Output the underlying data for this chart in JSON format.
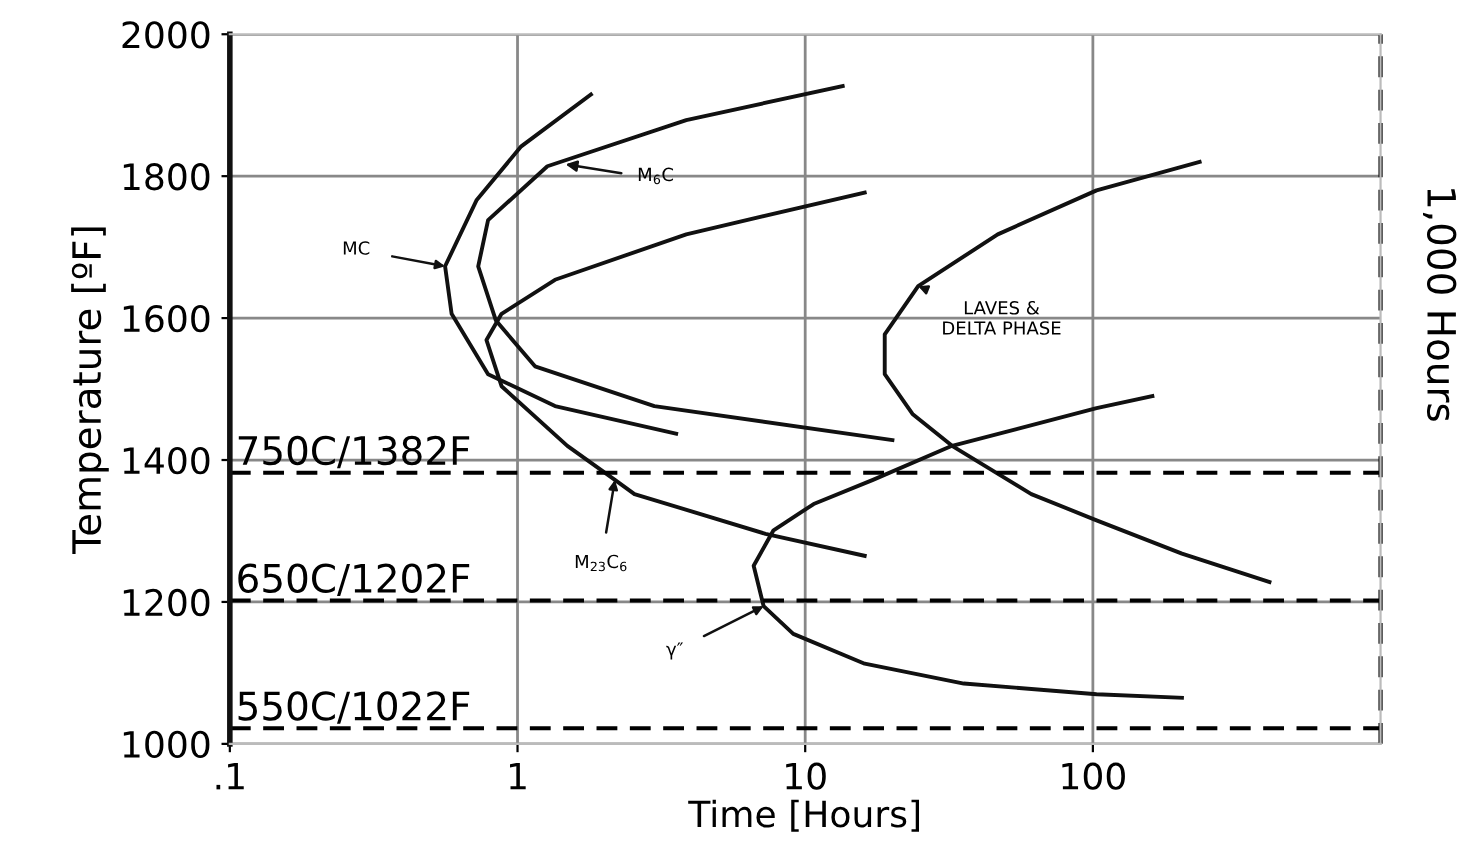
{
  "chart_data": {
    "type": "line",
    "xlabel": "Time [Hours]",
    "ylabel": "Temperature [ºF]",
    "log": "x",
    "xlim": [
      0.1,
      1000
    ],
    "ylim": [
      1000,
      2000
    ],
    "xticks": [
      {
        "value": 0.1,
        "label": ".1"
      },
      1,
      10,
      100
    ],
    "yticks": [
      1000,
      1200,
      1400,
      1600,
      1800,
      2000
    ],
    "grid": true,
    "marker": "none",
    "line_style": "solid",
    "series": [
      {
        "color": "#111111",
        "x": [
          1.8,
          1.03,
          0.72,
          0.56,
          0.59,
          0.79,
          1.35,
          3.56
        ],
        "values": [
          1915,
          1842,
          1766,
          1673,
          1606,
          1521,
          1476,
          1437
        ]
      },
      {
        "color": "#111111",
        "x": [
          13.5,
          3.86,
          1.27,
          0.79,
          0.73,
          0.84,
          1.15,
          2.99,
          20.1
        ],
        "values": [
          1927,
          1879,
          1814,
          1738,
          1673,
          1597,
          1532,
          1476,
          1428
        ]
      },
      {
        "color": "#111111",
        "x": [
          16.1,
          3.86,
          1.35,
          0.88,
          0.78,
          0.88,
          1.49,
          2.18,
          2.55,
          7.28,
          16.1
        ],
        "values": [
          1777,
          1718,
          1654,
          1606,
          1569,
          1504,
          1420,
          1372,
          1352,
          1296,
          1265
        ]
      },
      {
        "color": "#111111",
        "x": [
          235,
          103,
          46.7,
          24.7,
          18.9,
          18.9,
          23.6,
          32.4,
          61.1,
          103,
          204,
          411
        ],
        "values": [
          1820,
          1780,
          1718,
          1645,
          1577,
          1521,
          1465,
          1420,
          1352,
          1315,
          1268,
          1228
        ]
      },
      {
        "color": "#111111",
        "x": [
          161,
          103,
          32.4,
          17.2,
          10.7,
          7.76,
          6.62,
          7.17,
          9.09,
          16.1,
          35.6,
          103,
          204
        ],
        "values": [
          1490,
          1473,
          1420,
          1372,
          1338,
          1301,
          1251,
          1194,
          1155,
          1113,
          1085,
          1070,
          1065
        ]
      }
    ],
    "annotations": [
      {
        "text": "MC",
        "x": 0.56,
        "y": 1673
      },
      "M$_{6}$C",
      {
        "text": "M$_{23}$C$_{6}$",
        "x": 2.18,
        "y": 1372
      },
      {
        "text": "LAVES &\nDELTA PHASE",
        "x": 24.7,
        "y": 1645
      },
      {
        "text": "γ″",
        "x": 7.17,
        "y": 1194
      }
    ],
    "ref_lines": [
      {
        "axis": "y",
        "value": 1382,
        "label": "750C/1382F",
        "color": "#000000",
        "line_style": "dashed"
      },
      {
        "axis": "y",
        "value": 1202,
        "label": "650C/1202F",
        "color": "#000000",
        "line_style": "dashed"
      },
      {
        "axis": "y",
        "value": 1022,
        "label": "550C/1022F",
        "color": "#000000",
        "line_style": "dashed"
      },
      {
        "axis": "x",
        "value": 1000,
        "label": "1,000 Hours",
        "color": "#000000",
        "line_style": "dashed"
      }
    ]
  }
}
